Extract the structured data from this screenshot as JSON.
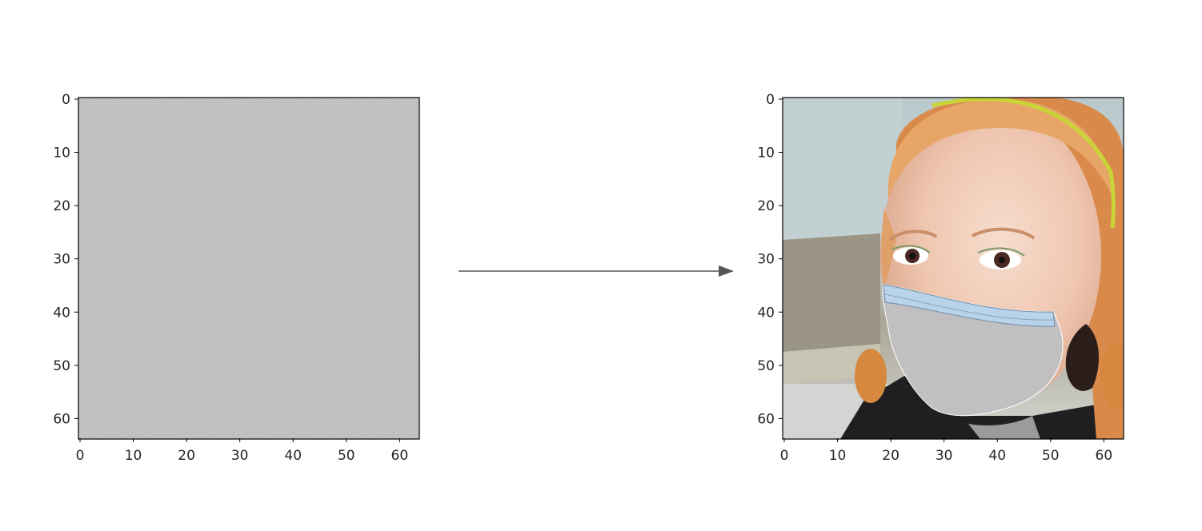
{
  "figure": {
    "left_panel": {
      "content": "random noise image",
      "x_ticks": [
        "0",
        "10",
        "20",
        "30",
        "40",
        "50",
        "60"
      ],
      "y_ticks": [
        "0",
        "10",
        "20",
        "30",
        "40",
        "50",
        "60"
      ],
      "x_range": [
        0,
        64
      ],
      "y_range": [
        0,
        64
      ],
      "y_inverted": true
    },
    "arrow": {
      "direction": "right",
      "color": "#555555"
    },
    "right_panel": {
      "content": "photo of a face with a noise-textured surgical mask overlay",
      "x_ticks": [
        "0",
        "10",
        "20",
        "30",
        "40",
        "50",
        "60"
      ],
      "y_ticks": [
        "0",
        "10",
        "20",
        "30",
        "40",
        "50",
        "60"
      ],
      "x_range": [
        0,
        64
      ],
      "y_range": [
        0,
        64
      ],
      "y_inverted": true
    }
  }
}
